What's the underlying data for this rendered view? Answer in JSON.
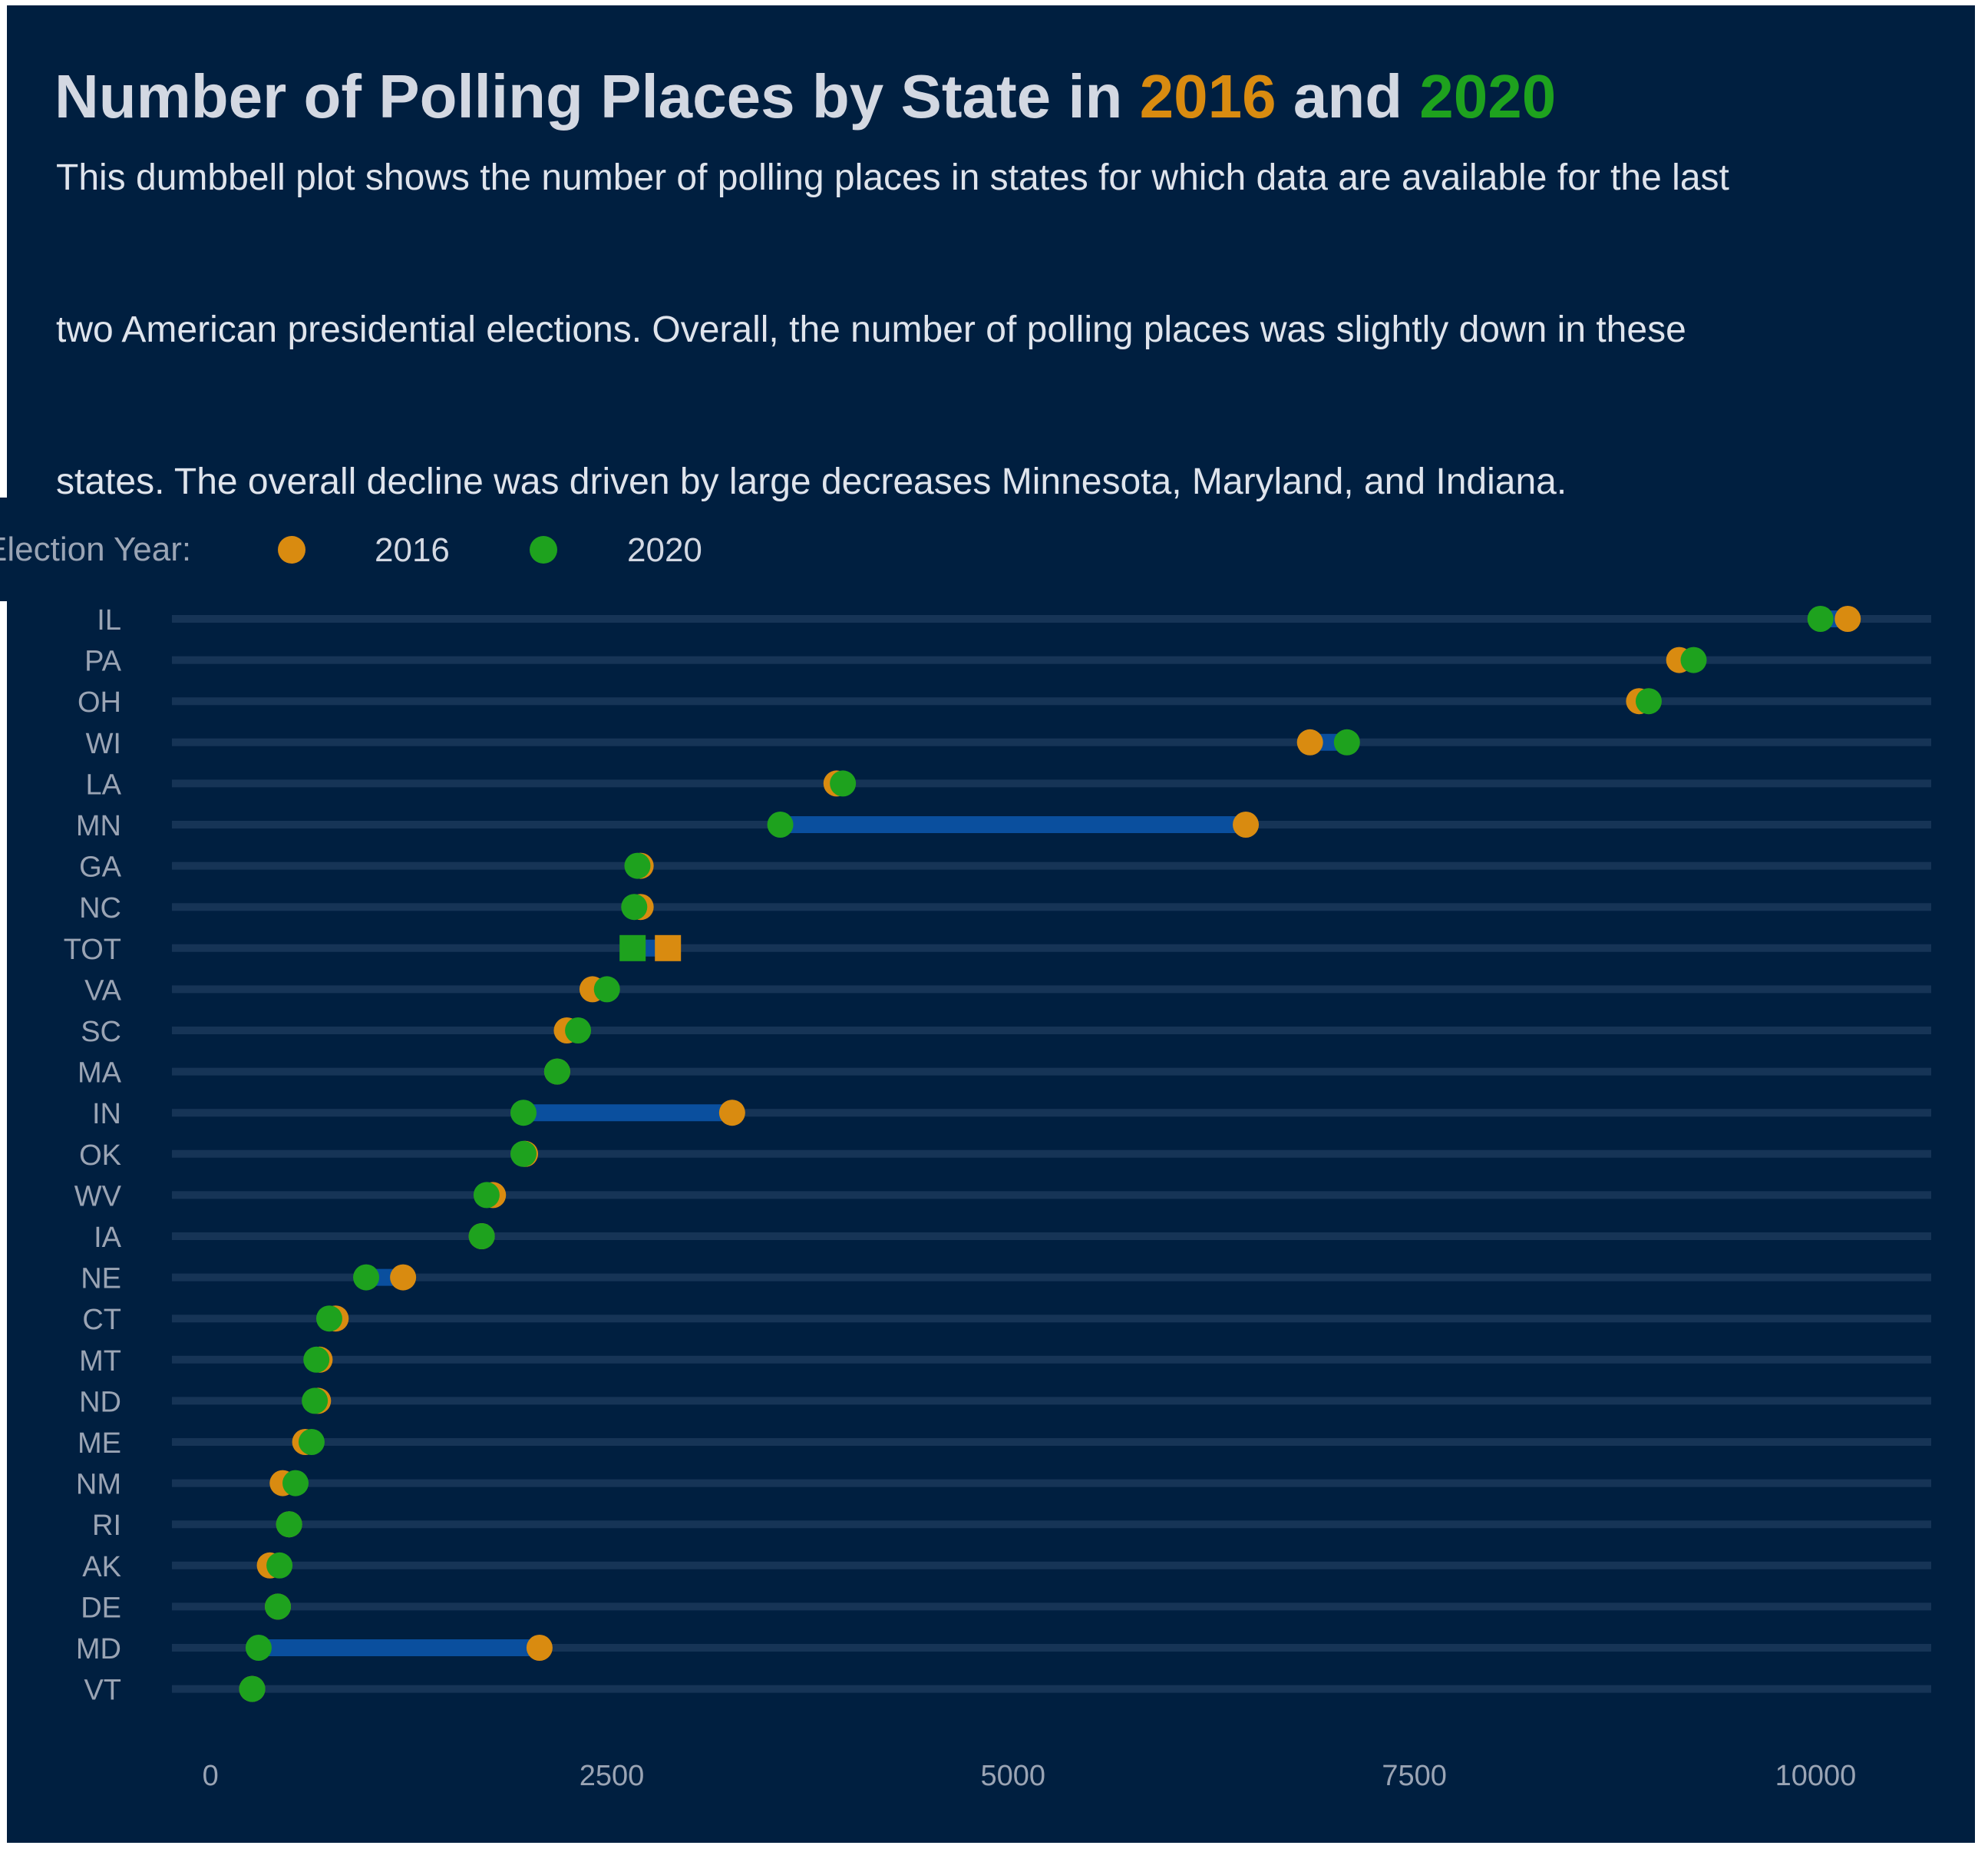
{
  "colors": {
    "background": "#001f40",
    "title_text": "#d3d8e2",
    "subtitle_text": "#dfe4ec",
    "axis_text": "#9aa4b4",
    "track": "#163456",
    "connector": "#0a4f9e",
    "year_2016": "#d98b10",
    "year_2020": "#1ea21e"
  },
  "title": {
    "part1": "Number of Polling Places by State in ",
    "year1": "2016",
    "part2": " and ",
    "year2": "2020"
  },
  "subtitle": {
    "line1": "This dumbbell plot shows the number of polling places in states for which data are available for the last",
    "line2": "two American presidential elections. Overall, the number of polling places was slightly down in these",
    "line3": "states. The overall decline was driven by large decreases Minnesota, Maryland, and Indiana."
  },
  "legend": {
    "title": "Election Year:",
    "items": [
      {
        "label": "2016",
        "color": "#d98b10"
      },
      {
        "label": "2020",
        "color": "#1ea21e"
      }
    ]
  },
  "chart_data": {
    "type": "dumbbell",
    "title": "Number of Polling Places by State in 2016 and 2020",
    "xlabel": "",
    "ylabel": "",
    "xlim": [
      -240,
      10720
    ],
    "xticks": [
      0,
      2500,
      5000,
      7500,
      10000
    ],
    "grid": false,
    "legend_position": "top-left",
    "series": [
      {
        "name": "2016",
        "color": "#d98b10"
      },
      {
        "name": "2020",
        "color": "#1ea21e"
      }
    ],
    "rows": [
      {
        "state": "IL",
        "v2016": 10200,
        "v2020": 10030
      },
      {
        "state": "PA",
        "v2016": 9150,
        "v2020": 9240
      },
      {
        "state": "OH",
        "v2016": 8900,
        "v2020": 8960
      },
      {
        "state": "WI",
        "v2016": 6850,
        "v2020": 7080
      },
      {
        "state": "LA",
        "v2016": 3900,
        "v2020": 3940
      },
      {
        "state": "MN",
        "v2016": 6450,
        "v2020": 3550
      },
      {
        "state": "GA",
        "v2016": 2680,
        "v2020": 2660
      },
      {
        "state": "NC",
        "v2016": 2680,
        "v2020": 2640
      },
      {
        "state": "TOT",
        "v2016": 2850,
        "v2020": 2630
      },
      {
        "state": "VA",
        "v2016": 2380,
        "v2020": 2470
      },
      {
        "state": "SC",
        "v2016": 2220,
        "v2020": 2290
      },
      {
        "state": "MA",
        "v2016": 2160,
        "v2020": 2160
      },
      {
        "state": "IN",
        "v2016": 3250,
        "v2020": 1950
      },
      {
        "state": "OK",
        "v2016": 1960,
        "v2020": 1950
      },
      {
        "state": "WV",
        "v2016": 1760,
        "v2020": 1720
      },
      {
        "state": "IA",
        "v2016": 1690,
        "v2020": 1690
      },
      {
        "state": "NE",
        "v2016": 1200,
        "v2020": 970
      },
      {
        "state": "CT",
        "v2016": 780,
        "v2020": 740
      },
      {
        "state": "MT",
        "v2016": 680,
        "v2020": 660
      },
      {
        "state": "ND",
        "v2016": 670,
        "v2020": 650
      },
      {
        "state": "ME",
        "v2016": 590,
        "v2020": 630
      },
      {
        "state": "NM",
        "v2016": 450,
        "v2020": 530
      },
      {
        "state": "RI",
        "v2016": 490,
        "v2020": 490
      },
      {
        "state": "AK",
        "v2016": 370,
        "v2020": 430
      },
      {
        "state": "DE",
        "v2016": 420,
        "v2020": 420
      },
      {
        "state": "MD",
        "v2016": 2050,
        "v2020": 300
      },
      {
        "state": "VT",
        "v2016": 260,
        "v2020": 260
      }
    ],
    "square_marker_rows": [
      "TOT"
    ]
  }
}
